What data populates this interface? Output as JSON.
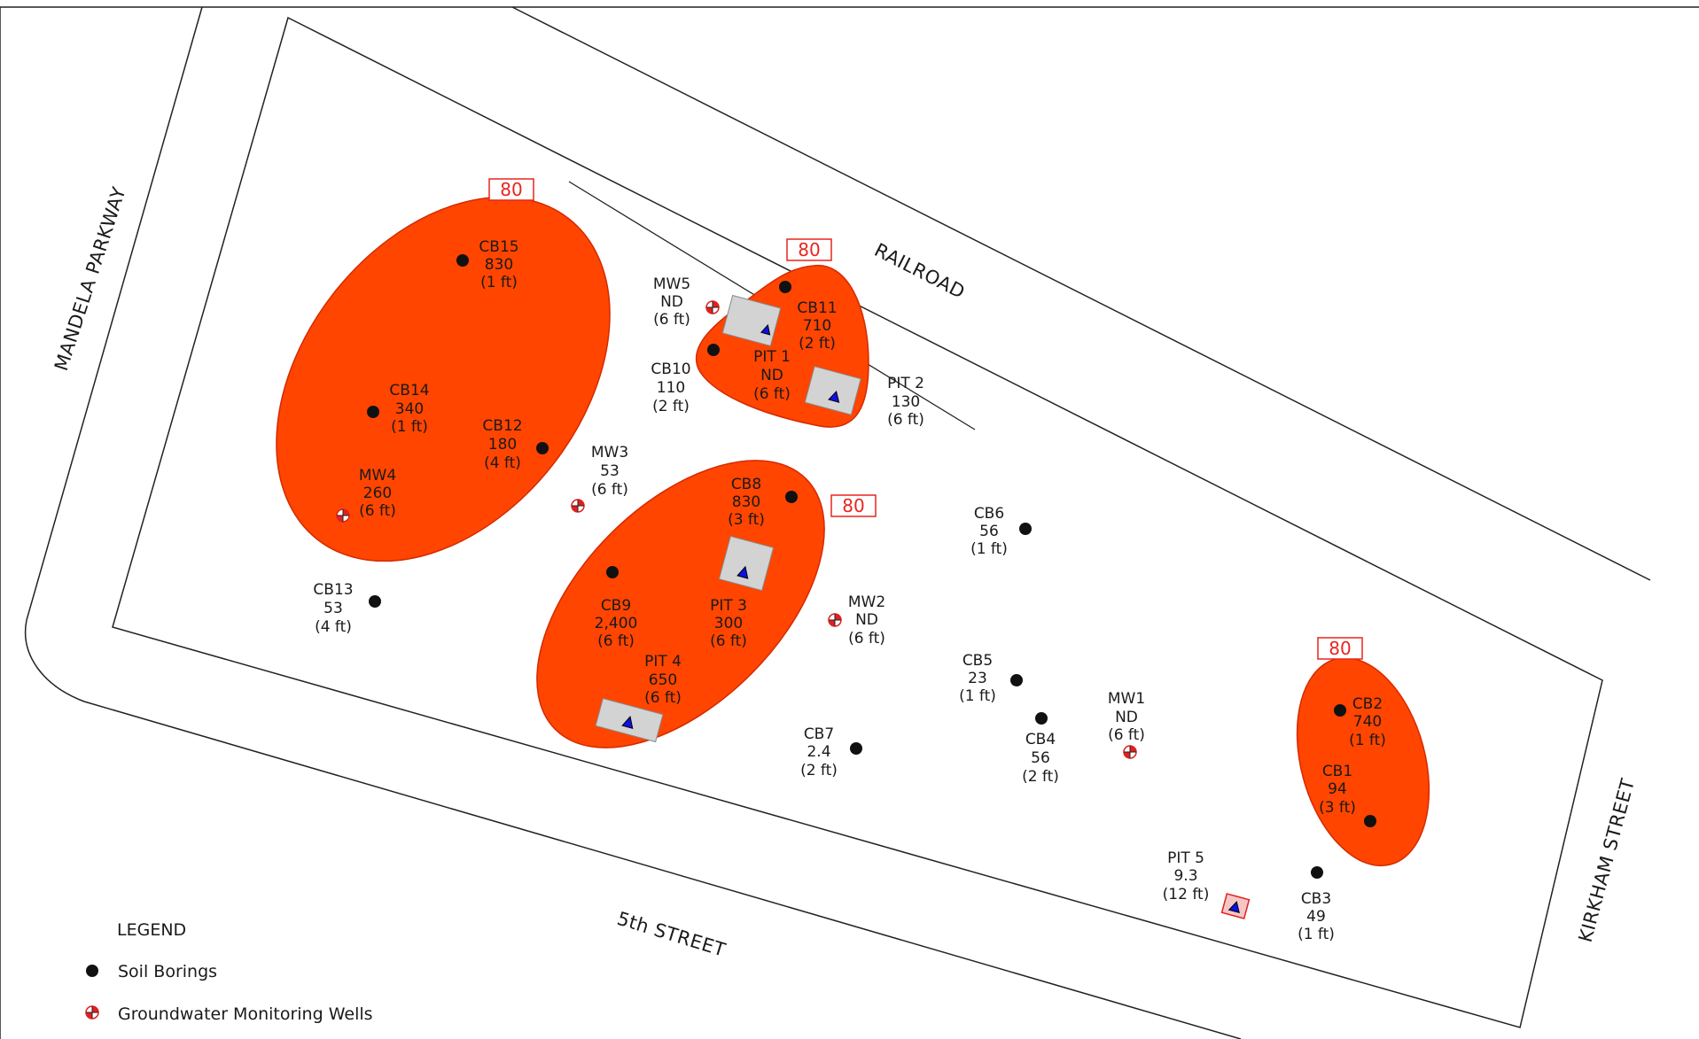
{
  "streets": {
    "mandela": "MANDELA PARKWAY",
    "railroad": "RAILROAD",
    "fifth": "5th STREET",
    "kirkham": "KIRKHAM STREET"
  },
  "contour_label": "80",
  "soil_borings": [
    {
      "id": "CB15",
      "value": "830",
      "depth": "(1 ft)"
    },
    {
      "id": "CB14",
      "value": "340",
      "depth": "(1 ft)"
    },
    {
      "id": "CB12",
      "value": "180",
      "depth": "(4 ft)"
    },
    {
      "id": "CB13",
      "value": "53",
      "depth": "(4 ft)"
    },
    {
      "id": "CB11",
      "value": "710",
      "depth": "(2 ft)"
    },
    {
      "id": "CB10",
      "value": "110",
      "depth": "(2 ft)"
    },
    {
      "id": "CB8",
      "value": "830",
      "depth": "(3 ft)"
    },
    {
      "id": "CB9",
      "value": "2,400",
      "depth": "(6 ft)"
    },
    {
      "id": "CB6",
      "value": "56",
      "depth": "(1 ft)"
    },
    {
      "id": "CB5",
      "value": "23",
      "depth": "(1 ft)"
    },
    {
      "id": "CB4",
      "value": "56",
      "depth": "(2 ft)"
    },
    {
      "id": "CB7",
      "value": "2.4",
      "depth": "(2 ft)"
    },
    {
      "id": "CB2",
      "value": "740",
      "depth": "(1 ft)"
    },
    {
      "id": "CB1",
      "value": "94",
      "depth": "(3 ft)"
    },
    {
      "id": "CB3",
      "value": "49",
      "depth": "(1 ft)"
    }
  ],
  "monitoring_wells": [
    {
      "id": "MW5",
      "value": "ND",
      "depth": "(6 ft)"
    },
    {
      "id": "MW4",
      "value": "260",
      "depth": "(6 ft)"
    },
    {
      "id": "MW3",
      "value": "53",
      "depth": "(6 ft)"
    },
    {
      "id": "MW2",
      "value": "ND",
      "depth": "(6 ft)"
    },
    {
      "id": "MW1",
      "value": "ND",
      "depth": "(6 ft)"
    }
  ],
  "pits": [
    {
      "id": "PIT 1",
      "value": "ND",
      "depth": "(6 ft)"
    },
    {
      "id": "PIT 2",
      "value": "130",
      "depth": "(6 ft)"
    },
    {
      "id": "PIT 3",
      "value": "300",
      "depth": "(6 ft)"
    },
    {
      "id": "PIT 4",
      "value": "650",
      "depth": "(6 ft)"
    },
    {
      "id": "PIT 5",
      "value": "9.3",
      "depth": "(12 ft)"
    }
  ],
  "legend": {
    "title": "LEGEND",
    "soil_borings": "Soil Borings",
    "wells": "Groundwater Monitoring Wells"
  },
  "colors": {
    "plume_fill": "#ff4500",
    "plume_stroke": "#d42a00",
    "contour_box": "#e8251f",
    "pit_fill": "#d3d3d3",
    "pit_marker": "#1010e0",
    "well_red": "#e02020",
    "boring": "#111111"
  }
}
